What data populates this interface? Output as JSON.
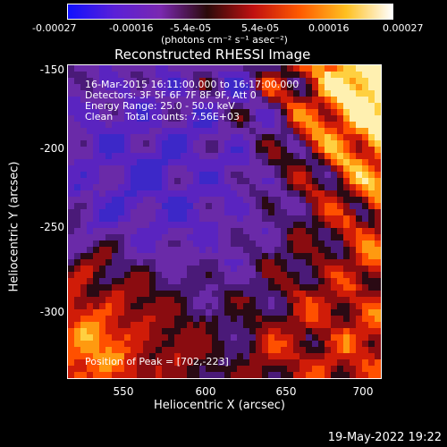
{
  "colorbar": {
    "ticks": [
      "-0.00027",
      "-0.00016",
      "-5.4e-05",
      "5.4e-05",
      "0.00016",
      "0.00027"
    ],
    "units": "(photons cm⁻² s⁻¹ asec⁻²)",
    "colors": [
      "#1010ff",
      "#5a20d8",
      "#7a28b0",
      "#2a0a0a",
      "#c01010",
      "#ff5a00",
      "#ffc020",
      "#ffffff"
    ]
  },
  "title": "Reconstructed RHESSI Image",
  "overlay": {
    "time": "16-Mar-2015 16:11:00.000 to 16:17:00.000",
    "detectors": "Detectors: 3F 5F 6F 7F 8F 9F, Att 0",
    "energy": "Energy Range: 25.0 - 50.0 keV",
    "clean": "Clean    Total counts: 7.56E+03",
    "peak": "Position of Peak = [702,-223]"
  },
  "axes": {
    "xlabel": "Heliocentric X (arcsec)",
    "ylabel": "Heliocentric Y (arcsec)",
    "xticks": [
      "550",
      "600",
      "650",
      "700"
    ],
    "yticks": [
      "-150",
      "-200",
      "-250",
      "-300"
    ]
  },
  "timestamp": "19-May-2022 19:22"
}
